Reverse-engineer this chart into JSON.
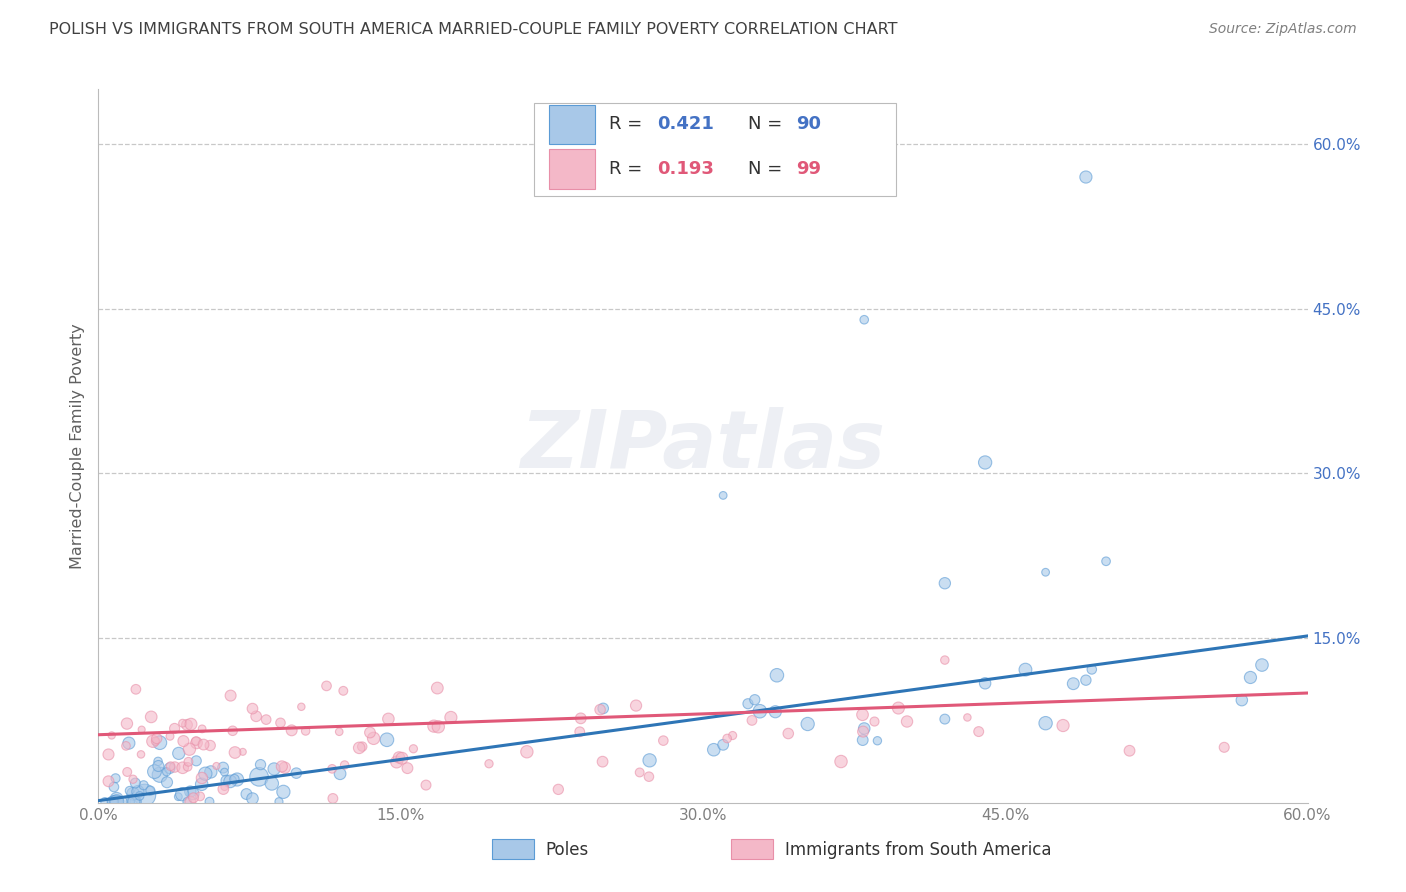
{
  "title": "POLISH VS IMMIGRANTS FROM SOUTH AMERICA MARRIED-COUPLE FAMILY POVERTY CORRELATION CHART",
  "source": "Source: ZipAtlas.com",
  "ylabel": "Married-Couple Family Poverty",
  "xlim": [
    0.0,
    0.6
  ],
  "ylim": [
    0.0,
    0.65
  ],
  "xtick_vals": [
    0.0,
    0.15,
    0.3,
    0.45,
    0.6
  ],
  "xtick_labels": [
    "0.0%",
    "15.0%",
    "30.0%",
    "45.0%",
    "60.0%"
  ],
  "ytick_vals": [
    0.15,
    0.3,
    0.45,
    0.6
  ],
  "ytick_labels": [
    "15.0%",
    "30.0%",
    "45.0%",
    "60.0%"
  ],
  "blue_R": "0.421",
  "blue_N": "90",
  "pink_R": "0.193",
  "pink_N": "99",
  "blue_fill": "#a8c8e8",
  "blue_edge": "#5b9bd5",
  "blue_line": "#2e75b6",
  "pink_fill": "#f4b8c8",
  "pink_edge": "#e88fa8",
  "pink_line": "#e05878",
  "legend_blue_label": "Poles",
  "legend_pink_label": "Immigrants from South America",
  "watermark": "ZIPatlas",
  "title_color": "#404040",
  "source_color": "#808080",
  "ylabel_color": "#606060",
  "tick_color": "#808080",
  "right_tick_color": "#4472c4",
  "grid_color": "#c8c8c8"
}
